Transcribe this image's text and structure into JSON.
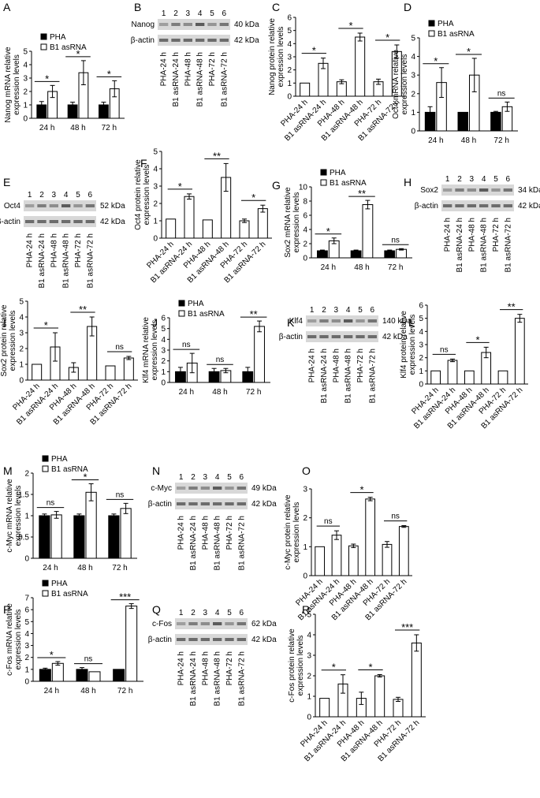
{
  "panel_letters": [
    "A",
    "B",
    "C",
    "D",
    "E",
    "F",
    "G",
    "H",
    "I",
    "J",
    "K",
    "L",
    "M",
    "N",
    "O",
    "P",
    "Q",
    "R"
  ],
  "legend": {
    "pha": "PHA",
    "b1": "B1 asRNA"
  },
  "time_labels": [
    "24 h",
    "48 h",
    "72 h"
  ],
  "sample_labels": [
    "PHA-24 h",
    "B1 asRNA-24 h",
    "PHA-48 h",
    "B1 asRNA-48 h",
    "PHA-72 h",
    "B1 asRNA-72 h"
  ],
  "lane_numbers": [
    "1",
    "2",
    "3",
    "4",
    "5",
    "6"
  ],
  "beta_actin": {
    "name": "β-actin",
    "kda": "42 kDa"
  },
  "chart_data": [
    {
      "panel": "A",
      "type": "bar",
      "gene": "Nanog",
      "kind": "mRNA",
      "ylabel": "Nanog mRNA relative expression levels",
      "categories": [
        "24 h",
        "48 h",
        "72 h"
      ],
      "ylim": [
        0,
        5
      ],
      "yticks": [
        0,
        1,
        2,
        3,
        4,
        5
      ],
      "series": [
        {
          "name": "PHA",
          "values": [
            1,
            1,
            1
          ],
          "errors": [
            0.25,
            0.2,
            0.2
          ]
        },
        {
          "name": "B1 asRNA",
          "values": [
            2.0,
            3.4,
            2.2
          ],
          "errors": [
            0.45,
            0.9,
            0.6
          ]
        }
      ],
      "significance": [
        "*",
        "*",
        "*"
      ]
    },
    {
      "panel": "C",
      "type": "bar",
      "gene": "Nanog",
      "kind": "protein",
      "ylabel": "Nanog protein relative expression levels",
      "categories": [
        "PHA-24 h",
        "B1 asRNA-24 h",
        "PHA-48 h",
        "B1 asRNA-48 h",
        "PHA-72 h",
        "B1 asRNA-72 h"
      ],
      "ylim": [
        0,
        6
      ],
      "yticks": [
        0,
        1,
        2,
        3,
        4,
        5,
        6
      ],
      "values": [
        1,
        2.5,
        1.1,
        4.5,
        1.1,
        3.4
      ],
      "errors": [
        0,
        0.4,
        0.15,
        0.3,
        0.2,
        0.5
      ],
      "significance": [
        "*",
        "*",
        "*"
      ]
    },
    {
      "panel": "D",
      "type": "bar",
      "gene": "Oct4",
      "kind": "mRNA",
      "ylabel": "Oct4 mRNA relative expression levels",
      "categories": [
        "24 h",
        "48 h",
        "72 h"
      ],
      "ylim": [
        0,
        5
      ],
      "yticks": [
        0,
        1,
        2,
        3,
        4,
        5
      ],
      "series": [
        {
          "name": "PHA",
          "values": [
            1,
            1,
            1
          ],
          "errors": [
            0.3,
            0,
            0.05
          ]
        },
        {
          "name": "B1 asRNA",
          "values": [
            2.6,
            3.0,
            1.3
          ],
          "errors": [
            0.8,
            0.9,
            0.25
          ]
        }
      ],
      "significance": [
        "*",
        "*",
        "ns"
      ]
    },
    {
      "panel": "F",
      "type": "bar",
      "gene": "Oct4",
      "kind": "protein",
      "ylabel": "Oct4 protein relative expression levels",
      "categories": [
        "PHA-24 h",
        "B1 asRNA-24 h",
        "PHA-48 h",
        "B1 asRNA-48 h",
        "PHA-72 h",
        "B1 asRNA-72 h"
      ],
      "ylim": [
        0,
        5
      ],
      "yticks": [
        0,
        1,
        2,
        3,
        4,
        5
      ],
      "values": [
        1.1,
        2.4,
        1.05,
        3.5,
        1.0,
        1.7
      ],
      "errors": [
        0,
        0.15,
        0,
        0.8,
        0.1,
        0.2
      ],
      "significance": [
        "*",
        "**",
        "*"
      ]
    },
    {
      "panel": "G",
      "type": "bar",
      "gene": "Sox2",
      "kind": "mRNA",
      "ylabel": "Sox2 mRNA relative expression levels",
      "categories": [
        "24 h",
        "48 h",
        "72 h"
      ],
      "ylim": [
        0,
        10
      ],
      "yticks": [
        0,
        2,
        4,
        6,
        8,
        10
      ],
      "series": [
        {
          "name": "PHA",
          "values": [
            1,
            1,
            1
          ],
          "errors": [
            0.1,
            0.1,
            0.1
          ]
        },
        {
          "name": "B1 asRNA",
          "values": [
            2.4,
            7.5,
            1.2
          ],
          "errors": [
            0.4,
            0.6,
            0.1
          ]
        }
      ],
      "significance": [
        "*",
        "**",
        "ns"
      ]
    },
    {
      "panel": "I",
      "type": "bar",
      "gene": "Sox2",
      "kind": "protein",
      "ylabel": "Sox2 protein relative expression levels",
      "categories": [
        "PHA-24 h",
        "B1 asRNA-24 h",
        "PHA-48 h",
        "B1 asRNA-48 h",
        "PHA-72 h",
        "B1 asRNA-72 h"
      ],
      "ylim": [
        0,
        5
      ],
      "yticks": [
        0,
        1,
        2,
        3,
        4,
        5
      ],
      "values": [
        1.0,
        2.1,
        0.8,
        3.4,
        0.9,
        1.4
      ],
      "errors": [
        0,
        0.9,
        0.3,
        0.6,
        0,
        0.1
      ],
      "significance": [
        "*",
        "**",
        "ns"
      ]
    },
    {
      "panel": "J",
      "type": "bar",
      "gene": "Klf4",
      "kind": "mRNA",
      "ylabel": "Klf4 mRNA relative expression levels",
      "categories": [
        "24 h",
        "48 h",
        "72 h"
      ],
      "ylim": [
        0,
        6
      ],
      "yticks": [
        0,
        1,
        2,
        3,
        4,
        5,
        6
      ],
      "series": [
        {
          "name": "PHA",
          "values": [
            1,
            1,
            1
          ],
          "errors": [
            0.4,
            0.3,
            0.4
          ]
        },
        {
          "name": "B1 asRNA",
          "values": [
            1.8,
            1.1,
            5.2
          ],
          "errors": [
            0.9,
            0.2,
            0.5
          ]
        }
      ],
      "significance": [
        "ns",
        "ns",
        "**"
      ]
    },
    {
      "panel": "L",
      "type": "bar",
      "gene": "Klf4",
      "kind": "protein",
      "ylabel": "Klf4 protein relative expression levels",
      "categories": [
        "PHA-24 h",
        "B1 asRNA-24 h",
        "PHA-48 h",
        "B1 asRNA-48 h",
        "PHA-72 h",
        "B1 asRNA-72 h"
      ],
      "ylim": [
        0,
        6
      ],
      "yticks": [
        0,
        1,
        2,
        3,
        4,
        5,
        6
      ],
      "values": [
        1.0,
        1.8,
        1.0,
        2.4,
        1.0,
        5.0
      ],
      "errors": [
        0,
        0.1,
        0,
        0.4,
        0,
        0.3
      ],
      "significance": [
        "ns",
        "*",
        "**"
      ]
    },
    {
      "panel": "M",
      "type": "bar",
      "gene": "c-Myc",
      "kind": "mRNA",
      "ylabel": "c-Myc mRNA relative expression levels",
      "categories": [
        "24 h",
        "48 h",
        "72 h"
      ],
      "ylim": [
        0,
        2
      ],
      "yticks": [
        0,
        0.5,
        1,
        1.5,
        2
      ],
      "series": [
        {
          "name": "PHA",
          "values": [
            1,
            1,
            1
          ],
          "errors": [
            0.04,
            0.04,
            0.04
          ]
        },
        {
          "name": "B1 asRNA",
          "values": [
            1.02,
            1.55,
            1.17
          ],
          "errors": [
            0.08,
            0.2,
            0.12
          ]
        }
      ],
      "significance": [
        "ns",
        "*",
        "ns"
      ]
    },
    {
      "panel": "O",
      "type": "bar",
      "gene": "c-Myc",
      "kind": "protein",
      "ylabel": "c-Myc protein relative expression levels",
      "categories": [
        "PHA-24 h",
        "B1 asRNA-24 h",
        "PHA-48 h",
        "B1 asRNA-48 h",
        "PHA-72 h",
        "B1 asRNA-72 h"
      ],
      "ylim": [
        0,
        3
      ],
      "yticks": [
        0,
        1,
        2,
        3
      ],
      "values": [
        1.0,
        1.4,
        1.03,
        2.65,
        1.08,
        1.7
      ],
      "errors": [
        0,
        0.15,
        0.06,
        0.06,
        0.1,
        0.03
      ],
      "significance": [
        "ns",
        "*",
        "ns"
      ]
    },
    {
      "panel": "P",
      "type": "bar",
      "gene": "c-Fos",
      "kind": "mRNA",
      "ylabel": "c-Fos mRNA relative expression levels",
      "categories": [
        "24 h",
        "48 h",
        "72 h"
      ],
      "ylim": [
        0,
        7
      ],
      "yticks": [
        0,
        1,
        2,
        3,
        4,
        5,
        6,
        7
      ],
      "series": [
        {
          "name": "PHA",
          "values": [
            1,
            1,
            1
          ],
          "errors": [
            0.1,
            0.15,
            0
          ]
        },
        {
          "name": "B1 asRNA",
          "values": [
            1.5,
            0.8,
            6.3
          ],
          "errors": [
            0.15,
            0,
            0.2
          ]
        }
      ],
      "significance": [
        "*",
        "ns",
        "***"
      ]
    },
    {
      "panel": "R",
      "type": "bar",
      "gene": "c-Fos",
      "kind": "protein",
      "ylabel": "c-Fos protein relative expression levels",
      "categories": [
        "PHA-24 h",
        "B1 asRNA-24 h",
        "PHA-48 h",
        "B1 asRNA-48 h",
        "PHA-72 h",
        "B1 asRNA-72 h"
      ],
      "ylim": [
        0,
        5
      ],
      "yticks": [
        0,
        1,
        2,
        3,
        4,
        5
      ],
      "values": [
        0.9,
        1.6,
        0.9,
        2.0,
        0.85,
        3.6
      ],
      "errors": [
        0,
        0.45,
        0.3,
        0.06,
        0.1,
        0.4
      ],
      "significance": [
        "*",
        "*",
        "***"
      ]
    }
  ],
  "blots": [
    {
      "panel": "B",
      "protein": "Nanog",
      "kda": "40 kDa"
    },
    {
      "panel": "E",
      "protein": "Oct4",
      "kda": "52 kDa"
    },
    {
      "panel": "H",
      "protein": "Sox2",
      "kda": "34 kDa"
    },
    {
      "panel": "K",
      "protein": "Klf4",
      "kda": "140 kDa"
    },
    {
      "panel": "N",
      "protein": "c-Myc",
      "kda": "49 kDa"
    },
    {
      "panel": "Q",
      "protein": "c-Fos",
      "kda": "62 kDa"
    }
  ]
}
